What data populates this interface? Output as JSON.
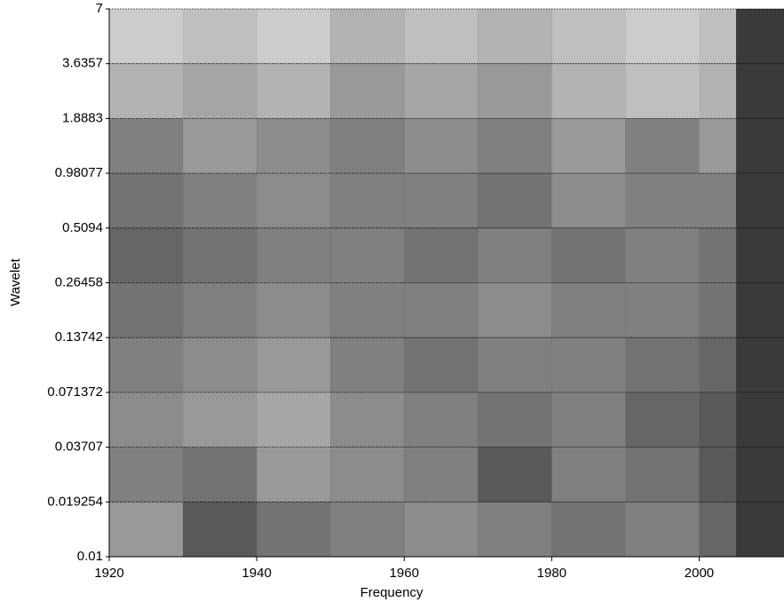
{
  "chart_data": {
    "type": "contour",
    "xlabel": "Frequency",
    "ylabel": "Wavelet",
    "xlim": [
      1920,
      2011.5
    ],
    "xticks": [
      1920,
      1940,
      1960,
      1980,
      2000
    ],
    "ylim": [
      0.01,
      7
    ],
    "ylog": true,
    "yticks": [
      0.01,
      0.019254,
      0.03707,
      0.071372,
      0.13742,
      0.26458,
      0.5094,
      0.98077,
      1.8883,
      3.6357,
      7
    ],
    "grid": true,
    "background": "#3a3a3a",
    "x": [
      1920,
      1930,
      1940,
      1950,
      1960,
      1970,
      1980,
      1990,
      2000,
      2005
    ],
    "y": [
      7,
      3.6357,
      1.8883,
      0.98077,
      0.5094,
      0.26458,
      0.13742,
      0.071372,
      0.03707,
      0.019254,
      0.01
    ],
    "z": [
      [
        0.8,
        0.75,
        0.8,
        0.7,
        0.75,
        0.7,
        0.75,
        0.8,
        0.75
      ],
      [
        0.7,
        0.65,
        0.7,
        0.6,
        0.65,
        0.6,
        0.7,
        0.75,
        0.7
      ],
      [
        0.5,
        0.6,
        0.55,
        0.5,
        0.55,
        0.5,
        0.6,
        0.5,
        0.6
      ],
      [
        0.45,
        0.5,
        0.55,
        0.5,
        0.5,
        0.45,
        0.55,
        0.5,
        0.5
      ],
      [
        0.4,
        0.45,
        0.5,
        0.5,
        0.45,
        0.5,
        0.45,
        0.5,
        0.45
      ],
      [
        0.45,
        0.5,
        0.55,
        0.5,
        0.5,
        0.55,
        0.5,
        0.5,
        0.45
      ],
      [
        0.5,
        0.55,
        0.6,
        0.5,
        0.45,
        0.5,
        0.5,
        0.45,
        0.4
      ],
      [
        0.55,
        0.6,
        0.65,
        0.55,
        0.5,
        0.45,
        0.5,
        0.4,
        0.35
      ],
      [
        0.5,
        0.45,
        0.6,
        0.55,
        0.5,
        0.35,
        0.5,
        0.45,
        0.35
      ],
      [
        0.6,
        0.35,
        0.45,
        0.5,
        0.55,
        0.5,
        0.45,
        0.5,
        0.4
      ]
    ]
  }
}
